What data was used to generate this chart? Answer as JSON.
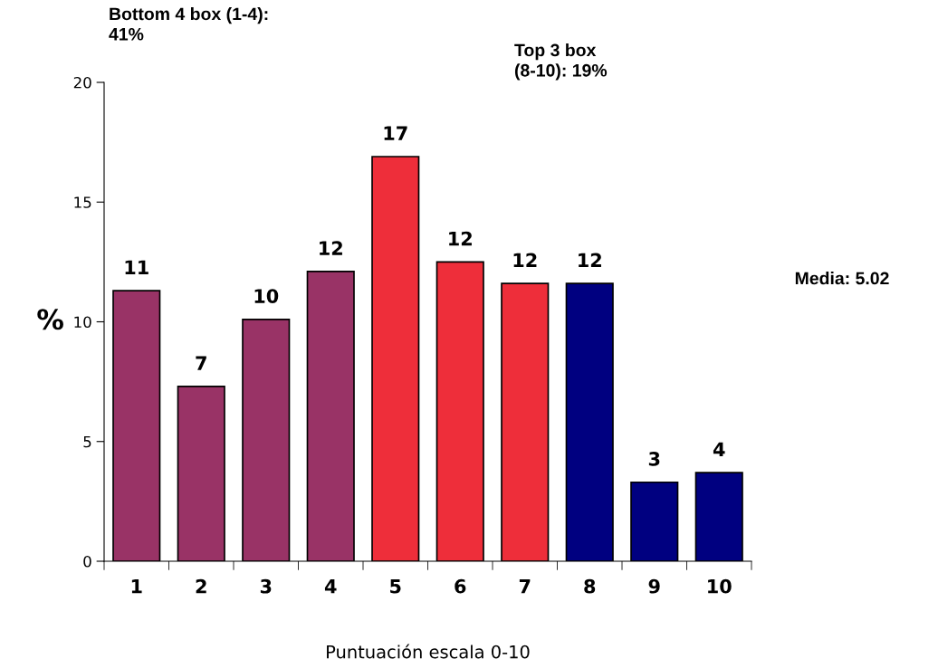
{
  "chart_data": {
    "type": "bar",
    "xlabel": "Puntuación escala 0-10",
    "ylabel": "%",
    "categories": [
      "1",
      "2",
      "3",
      "4",
      "5",
      "6",
      "7",
      "8",
      "9",
      "10"
    ],
    "values": [
      11.3,
      7.3,
      10.1,
      12.1,
      16.9,
      12.5,
      11.6,
      11.6,
      3.3,
      3.7
    ],
    "colors": [
      "#993366",
      "#993366",
      "#993366",
      "#993366",
      "#ee2e3a",
      "#ee2e3a",
      "#ee2e3a",
      "#000080",
      "#000080",
      "#000080"
    ],
    "value_labels": [
      "11",
      "7",
      "10",
      "12",
      "17",
      "12",
      "12",
      "12",
      "3",
      "4"
    ],
    "ylim": [
      0,
      20
    ],
    "yticks": [
      0,
      5,
      10,
      15,
      20
    ],
    "grid": false,
    "legend": false,
    "annotations": [
      "Bottom 4 box (1-4):\n41%",
      "Top 3 box\n(8-10): 19%",
      "Media: 5.02"
    ]
  }
}
